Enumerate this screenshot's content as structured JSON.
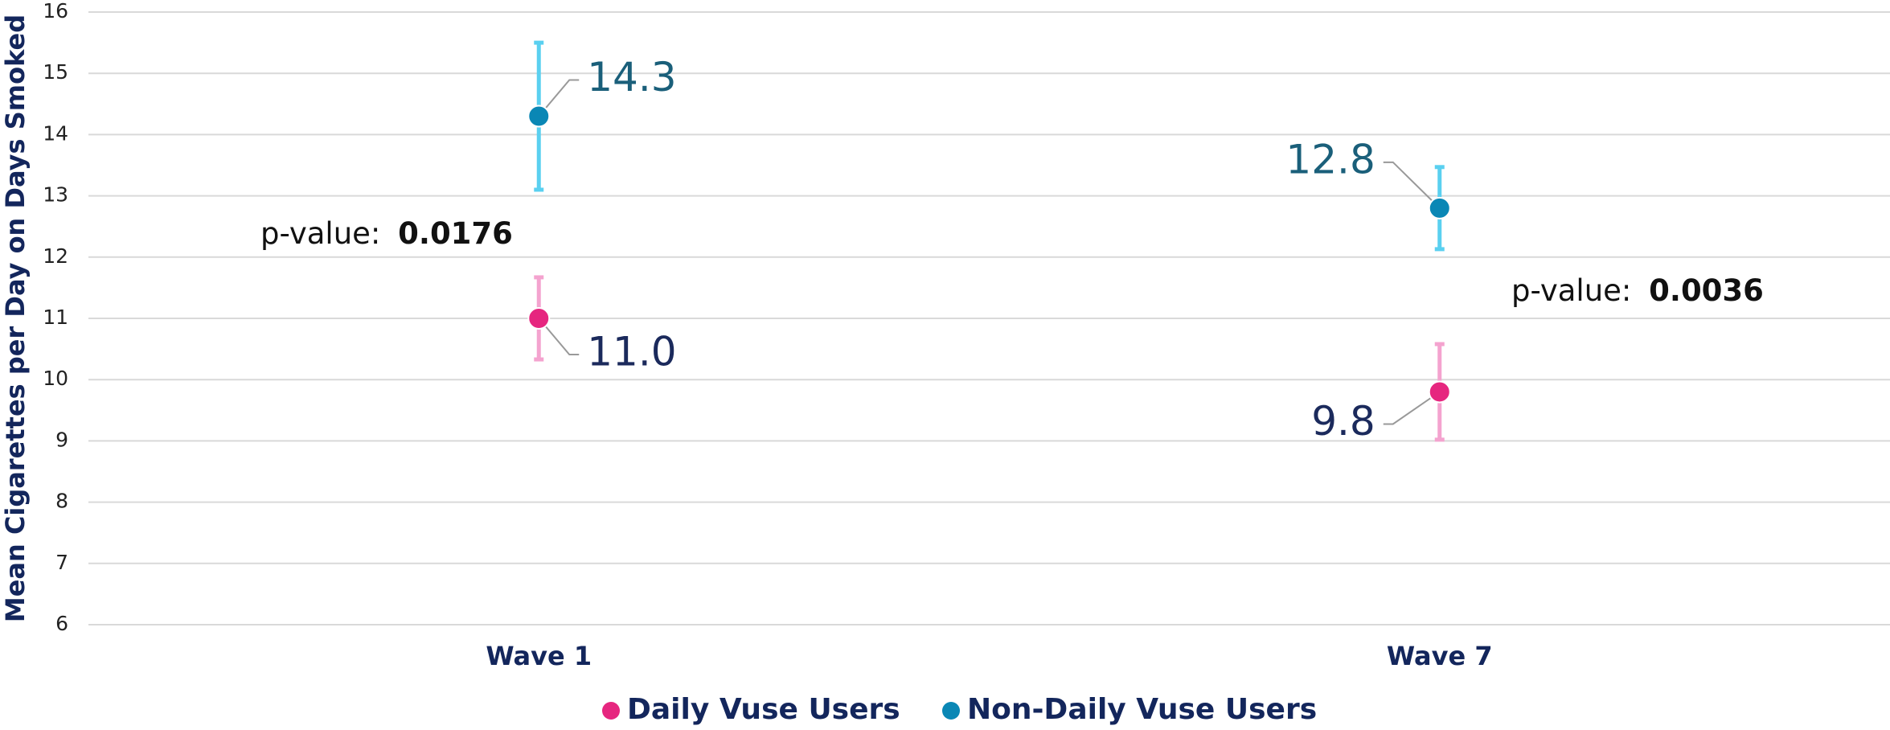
{
  "chart_data": {
    "type": "dot_errorbar",
    "ylabel": "Mean Cigarettes per Day on Days Smoked",
    "categories": [
      "Wave 1",
      "Wave 7"
    ],
    "series": [
      {
        "name": "Daily Vuse Users",
        "color": "#e6267f",
        "error_color": "#f4a3cf",
        "label_color": "#1b2a5c",
        "values": [
          11.0,
          9.8
        ],
        "value_labels": [
          "11.0",
          "9.8"
        ],
        "errors": [
          0.67,
          0.78
        ]
      },
      {
        "name": "Non-Daily Vuse Users",
        "color": "#0a87b5",
        "error_color": "#5ad0f0",
        "label_color": "#1a5f7a",
        "values": [
          14.3,
          12.8
        ],
        "value_labels": [
          "14.3",
          "12.8"
        ],
        "errors": [
          1.2,
          0.67
        ]
      }
    ],
    "annotations": [
      {
        "text": "p-value: ",
        "bold": "0.0176"
      },
      {
        "text": "p-value: ",
        "bold": "0.0036"
      }
    ],
    "ylim": [
      6,
      16
    ],
    "yticks": [
      6,
      7,
      8,
      9,
      10,
      11,
      12,
      13,
      14,
      15,
      16
    ],
    "grid": true,
    "legend": "bottom"
  }
}
